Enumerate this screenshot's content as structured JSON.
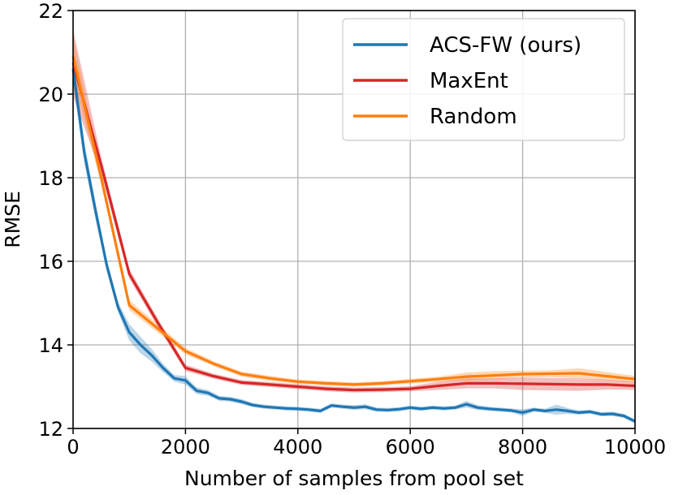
{
  "chart_data": {
    "type": "line",
    "title": "",
    "xlabel": "Number of samples from pool set",
    "ylabel": "RMSE",
    "xlim": [
      0,
      10000
    ],
    "ylim": [
      12,
      22
    ],
    "xticks": [
      0,
      2000,
      4000,
      6000,
      8000,
      10000
    ],
    "yticks": [
      12,
      14,
      16,
      18,
      20,
      22
    ],
    "xtick_labels": [
      "0",
      "2000",
      "4000",
      "6000",
      "8000",
      "10000"
    ],
    "ytick_labels": [
      "12",
      "14",
      "16",
      "18",
      "20",
      "22"
    ],
    "grid": true,
    "legend_position": "top-right",
    "series": [
      {
        "name": "ACS-FW (ours)",
        "color": "#1f77b4",
        "x": [
          0,
          200,
          400,
          600,
          800,
          1000,
          1200,
          1400,
          1600,
          1800,
          2000,
          2200,
          2400,
          2600,
          2800,
          3000,
          3200,
          3400,
          3600,
          3800,
          4000,
          4200,
          4400,
          4600,
          4800,
          5000,
          5200,
          5400,
          5600,
          5800,
          6000,
          6200,
          6400,
          6600,
          6800,
          7000,
          7200,
          7400,
          7600,
          7800,
          8000,
          8200,
          8400,
          8600,
          8800,
          9000,
          9200,
          9400,
          9600,
          9800,
          10000
        ],
        "y": [
          20.6,
          18.6,
          17.2,
          15.9,
          14.9,
          14.3,
          14.0,
          13.75,
          13.45,
          13.2,
          13.15,
          12.9,
          12.85,
          12.72,
          12.7,
          12.64,
          12.56,
          12.52,
          12.5,
          12.48,
          12.47,
          12.45,
          12.42,
          12.55,
          12.52,
          12.5,
          12.52,
          12.45,
          12.44,
          12.46,
          12.5,
          12.47,
          12.5,
          12.48,
          12.5,
          12.58,
          12.5,
          12.47,
          12.45,
          12.43,
          12.38,
          12.45,
          12.42,
          12.45,
          12.42,
          12.38,
          12.4,
          12.34,
          12.35,
          12.3,
          12.17
        ],
        "band": [
          0.35,
          0.25,
          0.2,
          0.15,
          0.12,
          0.2,
          0.2,
          0.15,
          0.1,
          0.08,
          0.1,
          0.08,
          0.07,
          0.06,
          0.06,
          0.06,
          0.05,
          0.05,
          0.05,
          0.05,
          0.05,
          0.05,
          0.05,
          0.05,
          0.05,
          0.06,
          0.06,
          0.05,
          0.05,
          0.05,
          0.05,
          0.05,
          0.05,
          0.05,
          0.05,
          0.08,
          0.06,
          0.05,
          0.05,
          0.05,
          0.08,
          0.05,
          0.05,
          0.12,
          0.07,
          0.05,
          0.05,
          0.05,
          0.05,
          0.05,
          0.05
        ]
      },
      {
        "name": "MaxEnt",
        "color": "#d62728",
        "x": [
          0,
          500,
          1000,
          1500,
          2000,
          2500,
          3000,
          3500,
          4000,
          4500,
          5000,
          5500,
          6000,
          6500,
          7000,
          7500,
          8000,
          8500,
          9000,
          9500,
          10000
        ],
        "y": [
          20.75,
          18.3,
          15.7,
          14.55,
          13.45,
          13.25,
          13.1,
          13.05,
          13.0,
          12.95,
          12.92,
          12.93,
          12.95,
          13.02,
          13.08,
          13.08,
          13.07,
          13.06,
          13.05,
          13.05,
          13.02
        ],
        "band": [
          0.8,
          0.2,
          0.12,
          0.1,
          0.08,
          0.06,
          0.06,
          0.06,
          0.06,
          0.06,
          0.06,
          0.06,
          0.06,
          0.1,
          0.12,
          0.12,
          0.15,
          0.15,
          0.15,
          0.12,
          0.1
        ]
      },
      {
        "name": "Random",
        "color": "#ff7f0e",
        "x": [
          0,
          500,
          1000,
          1500,
          2000,
          2500,
          3000,
          3500,
          4000,
          4500,
          5000,
          5500,
          6000,
          6500,
          7000,
          7500,
          8000,
          8500,
          9000,
          9500,
          10000
        ],
        "y": [
          20.9,
          18.0,
          14.95,
          14.4,
          13.85,
          13.55,
          13.3,
          13.2,
          13.12,
          13.08,
          13.05,
          13.08,
          13.13,
          13.18,
          13.24,
          13.27,
          13.3,
          13.31,
          13.32,
          13.25,
          13.18
        ],
        "band": [
          0.5,
          0.15,
          0.12,
          0.1,
          0.08,
          0.06,
          0.06,
          0.06,
          0.05,
          0.05,
          0.05,
          0.05,
          0.06,
          0.06,
          0.1,
          0.1,
          0.08,
          0.08,
          0.12,
          0.1,
          0.08
        ]
      }
    ]
  }
}
